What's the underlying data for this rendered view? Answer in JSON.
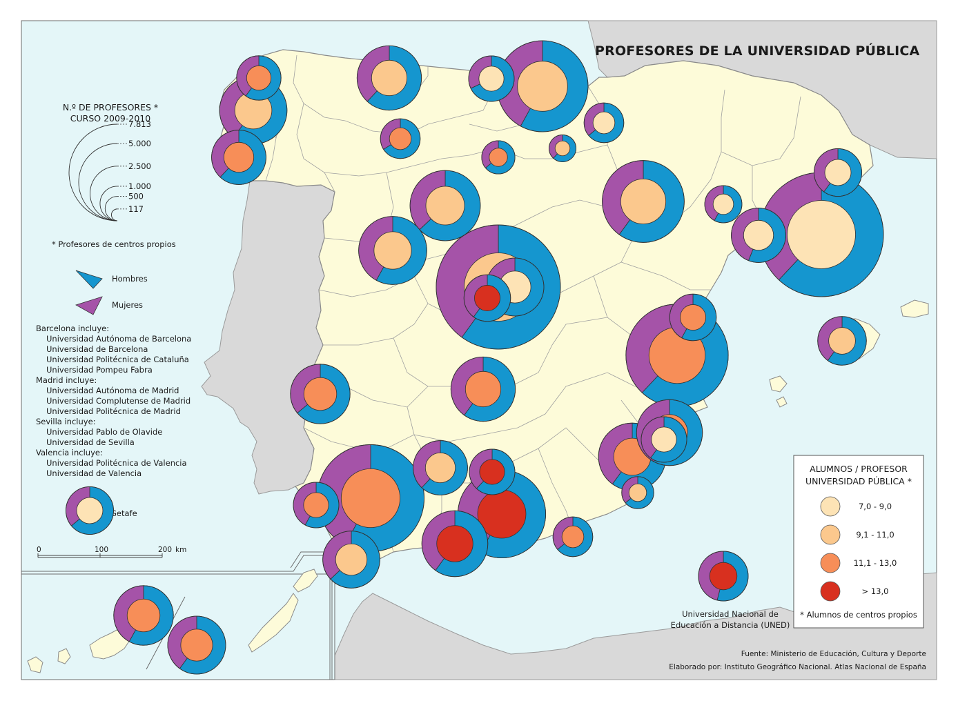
{
  "title": "PROFESORES DE LA UNIVERSIDAD PÚBLICA",
  "size_legend": {
    "title_line1": "N.º DE PROFESORES *",
    "title_line2": "CURSO 2009-2010",
    "values": [
      "7.813",
      "5.000",
      "2.500",
      "1.000",
      "500",
      "117"
    ],
    "note": "* Profesores de centros propios"
  },
  "sex_legend": {
    "men": "Hombres",
    "women": "Mujeres",
    "men_color": "#1596cf",
    "women_color": "#a553a8"
  },
  "includes": [
    {
      "heading": "Barcelona incluye:",
      "items": [
        "Universidad Autónoma de Barcelona",
        "Universidad de Barcelona",
        "Universidad Politécnica de Cataluña",
        "Universidad Pompeu Fabra"
      ]
    },
    {
      "heading": "Madrid incluye:",
      "items": [
        "Universidad Autónoma de Madrid",
        "Universidad Complutense de Madrid",
        "Universidad Politécnica de Madrid"
      ]
    },
    {
      "heading": "Sevilla incluye:",
      "items": [
        "Universidad Pablo de Olavide",
        "Universidad de Sevilla"
      ]
    },
    {
      "heading": "Valencia incluye:",
      "items": [
        "Universidad Politécnica de Valencia",
        "Universidad de Valencia"
      ]
    }
  ],
  "getafe_label": "Getafe",
  "scale_bar": {
    "labels": [
      "0",
      "100",
      "200"
    ],
    "unit": "km"
  },
  "ratio_legend": {
    "title_line1": "ALUMNOS / PROFESOR",
    "title_line2": "UNIVERSIDAD PÚBLICA *",
    "classes": [
      {
        "label": "7,0 - 9,0",
        "color": "#fde3b5"
      },
      {
        "label": "9,1 - 11,0",
        "color": "#fbc88d"
      },
      {
        "label": "11,1 - 13,0",
        "color": "#f78e58"
      },
      {
        "label": "> 13,0",
        "color": "#d8301f"
      }
    ],
    "note": "* Alumnos de centros propios"
  },
  "uned_label_line1": "Universidad Nacional de",
  "uned_label_line2": "Educación a Distancia (UNED)",
  "source": "Fuente: Ministerio de Educación, Cultura y Deporte",
  "credit": "Elaborado por: Instituto Geográfico Nacional. Atlas Nacional de España",
  "colors": {
    "sea": "#e4f6f8",
    "land_spain": "#fdfbd9",
    "land_other": "#d9d9d9",
    "border": "#8a8a8a"
  },
  "universities": [
    {
      "id": "a-coruna",
      "prof": 1000,
      "men": 0.6,
      "ratio": 2
    },
    {
      "id": "santiago",
      "prof": 2300,
      "men": 0.6,
      "ratio": 1
    },
    {
      "id": "vigo",
      "prof": 1500,
      "men": 0.62,
      "ratio": 2
    },
    {
      "id": "oviedo",
      "prof": 2100,
      "men": 0.62,
      "ratio": 1
    },
    {
      "id": "cantabria",
      "prof": 1050,
      "men": 0.68,
      "ratio": 0
    },
    {
      "id": "pais-vasco",
      "prof": 4200,
      "men": 0.58,
      "ratio": 1
    },
    {
      "id": "leon",
      "prof": 800,
      "men": 0.66,
      "ratio": 2
    },
    {
      "id": "burgos",
      "prof": 560,
      "men": 0.64,
      "ratio": 2
    },
    {
      "id": "la-rioja",
      "prof": 370,
      "men": 0.62,
      "ratio": 1
    },
    {
      "id": "publica-navarra",
      "prof": 800,
      "men": 0.64,
      "ratio": 0
    },
    {
      "id": "zaragoza",
      "prof": 3400,
      "men": 0.6,
      "ratio": 1
    },
    {
      "id": "lleida",
      "prof": 700,
      "men": 0.58,
      "ratio": 0
    },
    {
      "id": "girona",
      "prof": 1150,
      "men": 0.6,
      "ratio": 0
    },
    {
      "id": "barcelona",
      "prof": 7813,
      "men": 0.62,
      "ratio": 0
    },
    {
      "id": "rovira-virgili",
      "prof": 1500,
      "men": 0.56,
      "ratio": 0
    },
    {
      "id": "valladolid",
      "prof": 2500,
      "men": 0.63,
      "ratio": 1
    },
    {
      "id": "salamanca",
      "prof": 2350,
      "men": 0.58,
      "ratio": 1
    },
    {
      "id": "madrid",
      "prof": 7813,
      "men": 0.6,
      "ratio": 1
    },
    {
      "id": "alcala",
      "prof": 1700,
      "men": 0.6,
      "ratio": 0
    },
    {
      "id": "rey-juan-carlos",
      "prof": 1100,
      "men": 0.6,
      "ratio": 3
    },
    {
      "id": "castellon",
      "prof": 1100,
      "men": 0.58,
      "ratio": 2
    },
    {
      "id": "valencia",
      "prof": 5300,
      "men": 0.62,
      "ratio": 2
    },
    {
      "id": "extremadura",
      "prof": 1800,
      "men": 0.64,
      "ratio": 2
    },
    {
      "id": "castilla-la-mancha",
      "prof": 2100,
      "men": 0.6,
      "ratio": 2
    },
    {
      "id": "alicante",
      "prof": 2200,
      "men": 0.58,
      "ratio": 2
    },
    {
      "id": "miguel-hernandez",
      "prof": 1050,
      "men": 0.6,
      "ratio": 0
    },
    {
      "id": "murcia",
      "prof": 2300,
      "men": 0.6,
      "ratio": 2
    },
    {
      "id": "cartagena",
      "prof": 520,
      "men": 0.64,
      "ratio": 1
    },
    {
      "id": "cordoba",
      "prof": 1500,
      "men": 0.62,
      "ratio": 1
    },
    {
      "id": "jaen",
      "prof": 1050,
      "men": 0.62,
      "ratio": 3
    },
    {
      "id": "huelva",
      "prof": 1050,
      "men": 0.58,
      "ratio": 2
    },
    {
      "id": "sevilla",
      "prof": 5800,
      "men": 0.58,
      "ratio": 2
    },
    {
      "id": "granada",
      "prof": 3900,
      "men": 0.58,
      "ratio": 3
    },
    {
      "id": "malaga",
      "prof": 2200,
      "men": 0.6,
      "ratio": 3
    },
    {
      "id": "almeria",
      "prof": 800,
      "men": 0.64,
      "ratio": 2
    },
    {
      "id": "cadiz",
      "prof": 1650,
      "men": 0.63,
      "ratio": 1
    },
    {
      "id": "illes-balears",
      "prof": 1200,
      "men": 0.6,
      "ratio": 1
    },
    {
      "id": "uned",
      "prof": 1250,
      "men": 0.54,
      "ratio": 3
    },
    {
      "id": "la-laguna",
      "prof": 1800,
      "men": 0.58,
      "ratio": 2
    },
    {
      "id": "las-palmas",
      "prof": 1700,
      "men": 0.6,
      "ratio": 2
    },
    {
      "id": "getafe-carlos-iii",
      "prof": 1150,
      "men": 0.64,
      "ratio": 0
    }
  ]
}
